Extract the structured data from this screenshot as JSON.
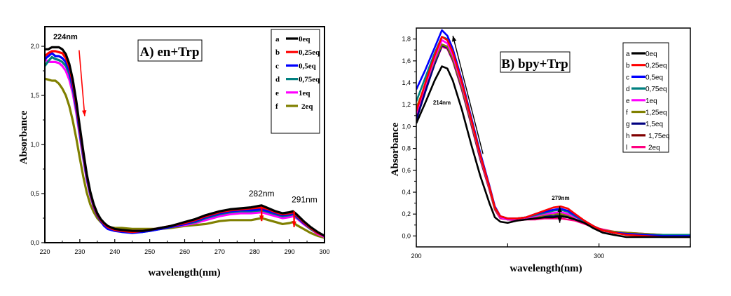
{
  "chart_data": [
    {
      "type": "line",
      "title": "A) en+Trp",
      "xlabel": "wavelength(nm)",
      "ylabel": "Absorbance",
      "xlim": [
        220,
        300
      ],
      "ylim": [
        0,
        2.2
      ],
      "xticks": [
        220,
        230,
        240,
        250,
        260,
        270,
        280,
        290,
        300
      ],
      "xtick_labels": [
        "220",
        "230",
        "240",
        "250",
        "260",
        "270",
        "280",
        "290",
        "300"
      ],
      "yticks": [
        0,
        0.5,
        1.0,
        1.5,
        2.0
      ],
      "ytick_labels": [
        "0,0",
        "0,5",
        "1,0",
        "1,5",
        "2,0"
      ],
      "grid": false,
      "legend_position": "top-right",
      "annotations": [
        {
          "text": "224nm",
          "x": 224,
          "y": 2.07,
          "arrow": "down",
          "arrow_color": "#ff0000",
          "arrow_from": [
            229.8,
            1.96
          ],
          "arrow_to": [
            231.4,
            1.29
          ]
        },
        {
          "text": "282nm",
          "x": 282,
          "y": 0.47,
          "arrow": "down",
          "arrow_color": "#ff0000",
          "arrow_from": [
            282,
            0.36
          ],
          "arrow_to": [
            282,
            0.22
          ]
        },
        {
          "text": "291nm",
          "x": 291,
          "y": 0.41,
          "arrow": "down",
          "arrow_color": "#ff0000",
          "arrow_from": [
            291.3,
            0.32
          ],
          "arrow_to": [
            291.3,
            0.16
          ]
        }
      ],
      "x": [
        220,
        221,
        222,
        223,
        224,
        225,
        226,
        227,
        228,
        229,
        230,
        231,
        232,
        233,
        234,
        235,
        236,
        237,
        238,
        240,
        242,
        245,
        248,
        250,
        253,
        256,
        260,
        263,
        266,
        270,
        273,
        276,
        279,
        282,
        284,
        286,
        288,
        290,
        291,
        292,
        294,
        296,
        298,
        300
      ],
      "series": [
        {
          "label": "a",
          "name": "0eq",
          "color": "#000000",
          "values": [
            1.97,
            1.97,
            1.99,
            1.99,
            1.99,
            1.97,
            1.92,
            1.82,
            1.66,
            1.44,
            1.18,
            0.93,
            0.7,
            0.52,
            0.39,
            0.3,
            0.24,
            0.2,
            0.17,
            0.14,
            0.13,
            0.12,
            0.12,
            0.13,
            0.15,
            0.17,
            0.21,
            0.24,
            0.28,
            0.32,
            0.34,
            0.35,
            0.36,
            0.38,
            0.35,
            0.32,
            0.3,
            0.31,
            0.32,
            0.29,
            0.22,
            0.16,
            0.11,
            0.07
          ]
        },
        {
          "label": "b",
          "name": "0,25eq",
          "color": "#ff0000",
          "values": [
            1.9,
            1.93,
            1.95,
            1.95,
            1.94,
            1.93,
            1.88,
            1.79,
            1.63,
            1.41,
            1.16,
            0.91,
            0.69,
            0.51,
            0.38,
            0.29,
            0.23,
            0.19,
            0.16,
            0.13,
            0.12,
            0.11,
            0.12,
            0.13,
            0.15,
            0.17,
            0.2,
            0.23,
            0.27,
            0.31,
            0.33,
            0.34,
            0.35,
            0.36,
            0.34,
            0.31,
            0.29,
            0.3,
            0.31,
            0.28,
            0.21,
            0.15,
            0.1,
            0.07
          ]
        },
        {
          "label": "c",
          "name": "0,5eq",
          "color": "#0000ff",
          "values": [
            1.87,
            1.9,
            1.93,
            1.9,
            1.9,
            1.88,
            1.84,
            1.75,
            1.59,
            1.38,
            1.13,
            0.89,
            0.67,
            0.5,
            0.37,
            0.28,
            0.22,
            0.17,
            0.14,
            0.12,
            0.11,
            0.1,
            0.11,
            0.12,
            0.14,
            0.16,
            0.19,
            0.22,
            0.26,
            0.3,
            0.32,
            0.33,
            0.33,
            0.34,
            0.32,
            0.3,
            0.28,
            0.29,
            0.3,
            0.27,
            0.2,
            0.15,
            0.1,
            0.07
          ]
        },
        {
          "label": "d",
          "name": "0,75eq",
          "color": "#008080",
          "values": [
            1.8,
            1.85,
            1.89,
            1.87,
            1.86,
            1.84,
            1.8,
            1.72,
            1.57,
            1.36,
            1.11,
            0.87,
            0.66,
            0.49,
            0.37,
            0.28,
            0.22,
            0.17,
            0.15,
            0.13,
            0.12,
            0.11,
            0.11,
            0.12,
            0.14,
            0.16,
            0.19,
            0.21,
            0.25,
            0.29,
            0.31,
            0.32,
            0.32,
            0.33,
            0.31,
            0.29,
            0.27,
            0.28,
            0.29,
            0.26,
            0.2,
            0.14,
            0.1,
            0.07
          ]
        },
        {
          "label": "e",
          "name": "1eq",
          "color": "#ff00ff",
          "values": [
            1.87,
            1.84,
            1.84,
            1.84,
            1.83,
            1.8,
            1.75,
            1.66,
            1.52,
            1.32,
            1.08,
            0.85,
            0.64,
            0.48,
            0.36,
            0.28,
            0.22,
            0.17,
            0.15,
            0.13,
            0.12,
            0.12,
            0.12,
            0.13,
            0.14,
            0.16,
            0.18,
            0.2,
            0.23,
            0.27,
            0.29,
            0.3,
            0.3,
            0.31,
            0.29,
            0.27,
            0.25,
            0.26,
            0.27,
            0.25,
            0.19,
            0.14,
            0.09,
            0.06
          ]
        },
        {
          "label": "f",
          "name": "2eq",
          "color": "#808000",
          "values": [
            1.67,
            1.66,
            1.65,
            1.65,
            1.62,
            1.57,
            1.5,
            1.39,
            1.24,
            1.06,
            0.86,
            0.67,
            0.51,
            0.39,
            0.31,
            0.25,
            0.21,
            0.18,
            0.16,
            0.15,
            0.15,
            0.14,
            0.14,
            0.14,
            0.14,
            0.15,
            0.17,
            0.18,
            0.19,
            0.22,
            0.23,
            0.23,
            0.23,
            0.25,
            0.23,
            0.21,
            0.19,
            0.2,
            0.21,
            0.18,
            0.14,
            0.1,
            0.07,
            0.05
          ]
        }
      ]
    },
    {
      "type": "line",
      "title": "B) bpy+Trp",
      "xlabel": "wavelength(nm)",
      "ylabel": "Absorbance",
      "xlim": [
        200,
        350
      ],
      "ylim": [
        -0.1,
        1.9
      ],
      "xticks": [
        200,
        250,
        300,
        350
      ],
      "xtick_labels": [
        "200",
        "",
        "300",
        ""
      ],
      "yticks": [
        0,
        0.2,
        0.4,
        0.6,
        0.8,
        1.0,
        1.2,
        1.4,
        1.6,
        1.8
      ],
      "ytick_labels": [
        "0,0",
        "0,2",
        "0,4",
        "0,6",
        "0,8",
        "1,0",
        "1,2",
        "1,4",
        "1,6",
        "1,8"
      ],
      "grid": false,
      "legend_position": "top-right",
      "annotations": [
        {
          "text": "214nm",
          "x": 214,
          "y": 1.2
        },
        {
          "text": "279nm",
          "x": 279,
          "y": 0.33,
          "arrow": "both",
          "arrow_color": "#000000",
          "arrow_from": [
            278.5,
            0.27
          ],
          "arrow_to": [
            278.5,
            0.12
          ]
        },
        {
          "text": "",
          "arrow": "up",
          "arrow_color": "#000000",
          "arrow_from": [
            236.5,
            0.75
          ],
          "arrow_to": [
            220,
            1.83
          ]
        }
      ],
      "x": [
        200,
        205,
        210,
        214,
        217,
        220,
        225,
        230,
        235,
        240,
        243,
        246,
        250,
        255,
        260,
        265,
        270,
        275,
        279,
        283,
        287,
        292,
        297,
        302,
        308,
        315,
        325,
        335,
        350
      ],
      "series": [
        {
          "label": "a",
          "name": "0eq",
          "color": "#000000",
          "values": [
            1.03,
            1.22,
            1.42,
            1.55,
            1.53,
            1.42,
            1.15,
            0.84,
            0.55,
            0.3,
            0.17,
            0.13,
            0.12,
            0.14,
            0.15,
            0.16,
            0.17,
            0.17,
            0.18,
            0.17,
            0.15,
            0.12,
            0.07,
            0.03,
            0.01,
            -0.01,
            -0.01,
            -0.01,
            -0.01
          ]
        },
        {
          "label": "b",
          "name": "0,25eq",
          "color": "#ff0000",
          "values": [
            1.14,
            1.4,
            1.65,
            1.82,
            1.79,
            1.68,
            1.4,
            1.07,
            0.74,
            0.45,
            0.26,
            0.18,
            0.16,
            0.16,
            0.17,
            0.2,
            0.23,
            0.26,
            0.27,
            0.25,
            0.2,
            0.14,
            0.09,
            0.05,
            0.03,
            0.01,
            0.0,
            -0.01,
            -0.01
          ]
        },
        {
          "label": "c",
          "name": "0,5eq",
          "color": "#0000ff",
          "values": [
            1.34,
            1.52,
            1.72,
            1.88,
            1.83,
            1.71,
            1.42,
            1.09,
            0.76,
            0.46,
            0.27,
            0.18,
            0.16,
            0.16,
            0.17,
            0.2,
            0.22,
            0.24,
            0.25,
            0.23,
            0.19,
            0.14,
            0.09,
            0.05,
            0.03,
            0.02,
            0.01,
            0.0,
            0.0
          ]
        },
        {
          "label": "d",
          "name": "0,75eq",
          "color": "#008080",
          "values": [
            1.23,
            1.45,
            1.67,
            1.82,
            1.8,
            1.69,
            1.41,
            1.08,
            0.75,
            0.45,
            0.26,
            0.18,
            0.16,
            0.16,
            0.17,
            0.19,
            0.21,
            0.23,
            0.24,
            0.22,
            0.18,
            0.13,
            0.09,
            0.05,
            0.03,
            0.02,
            0.01,
            0.01,
            0.01
          ]
        },
        {
          "label": "e",
          "name": "1eq",
          "color": "#ff00ff",
          "values": [
            1.12,
            1.38,
            1.62,
            1.79,
            1.76,
            1.65,
            1.38,
            1.06,
            0.73,
            0.44,
            0.26,
            0.17,
            0.15,
            0.15,
            0.16,
            0.18,
            0.2,
            0.21,
            0.22,
            0.2,
            0.17,
            0.13,
            0.09,
            0.05,
            0.03,
            0.02,
            0.01,
            0.0,
            0.0
          ]
        },
        {
          "label": "f",
          "name": "1,25eq",
          "color": "#808000",
          "values": [
            1.17,
            1.38,
            1.6,
            1.75,
            1.73,
            1.62,
            1.35,
            1.04,
            0.72,
            0.43,
            0.25,
            0.17,
            0.15,
            0.15,
            0.16,
            0.17,
            0.19,
            0.2,
            0.2,
            0.19,
            0.16,
            0.12,
            0.09,
            0.05,
            0.04,
            0.03,
            0.02,
            0.01,
            0.01
          ]
        },
        {
          "label": "g",
          "name": "1,5eq",
          "color": "#000080",
          "values": [
            1.06,
            1.32,
            1.57,
            1.74,
            1.72,
            1.61,
            1.34,
            1.03,
            0.71,
            0.43,
            0.25,
            0.17,
            0.15,
            0.15,
            0.16,
            0.17,
            0.18,
            0.18,
            0.19,
            0.18,
            0.15,
            0.12,
            0.09,
            0.05,
            0.03,
            0.02,
            0.01,
            0.0,
            0.0
          ]
        },
        {
          "label": "h",
          "name": "1,75eq",
          "color": "#800000",
          "values": [
            1.1,
            1.35,
            1.59,
            1.75,
            1.73,
            1.62,
            1.35,
            1.03,
            0.71,
            0.43,
            0.25,
            0.17,
            0.15,
            0.15,
            0.16,
            0.17,
            0.18,
            0.18,
            0.18,
            0.17,
            0.15,
            0.12,
            0.08,
            0.05,
            0.03,
            0.02,
            0.01,
            0.0,
            0.0
          ]
        },
        {
          "label": "l",
          "name": "2eq",
          "color": "#ff0080",
          "values": [
            1.09,
            1.33,
            1.57,
            1.73,
            1.71,
            1.6,
            1.33,
            1.02,
            0.7,
            0.42,
            0.24,
            0.16,
            0.15,
            0.14,
            0.15,
            0.15,
            0.16,
            0.16,
            0.16,
            0.15,
            0.14,
            0.11,
            0.08,
            0.06,
            0.04,
            0.03,
            0.02,
            0.01,
            0.0
          ]
        }
      ]
    }
  ]
}
